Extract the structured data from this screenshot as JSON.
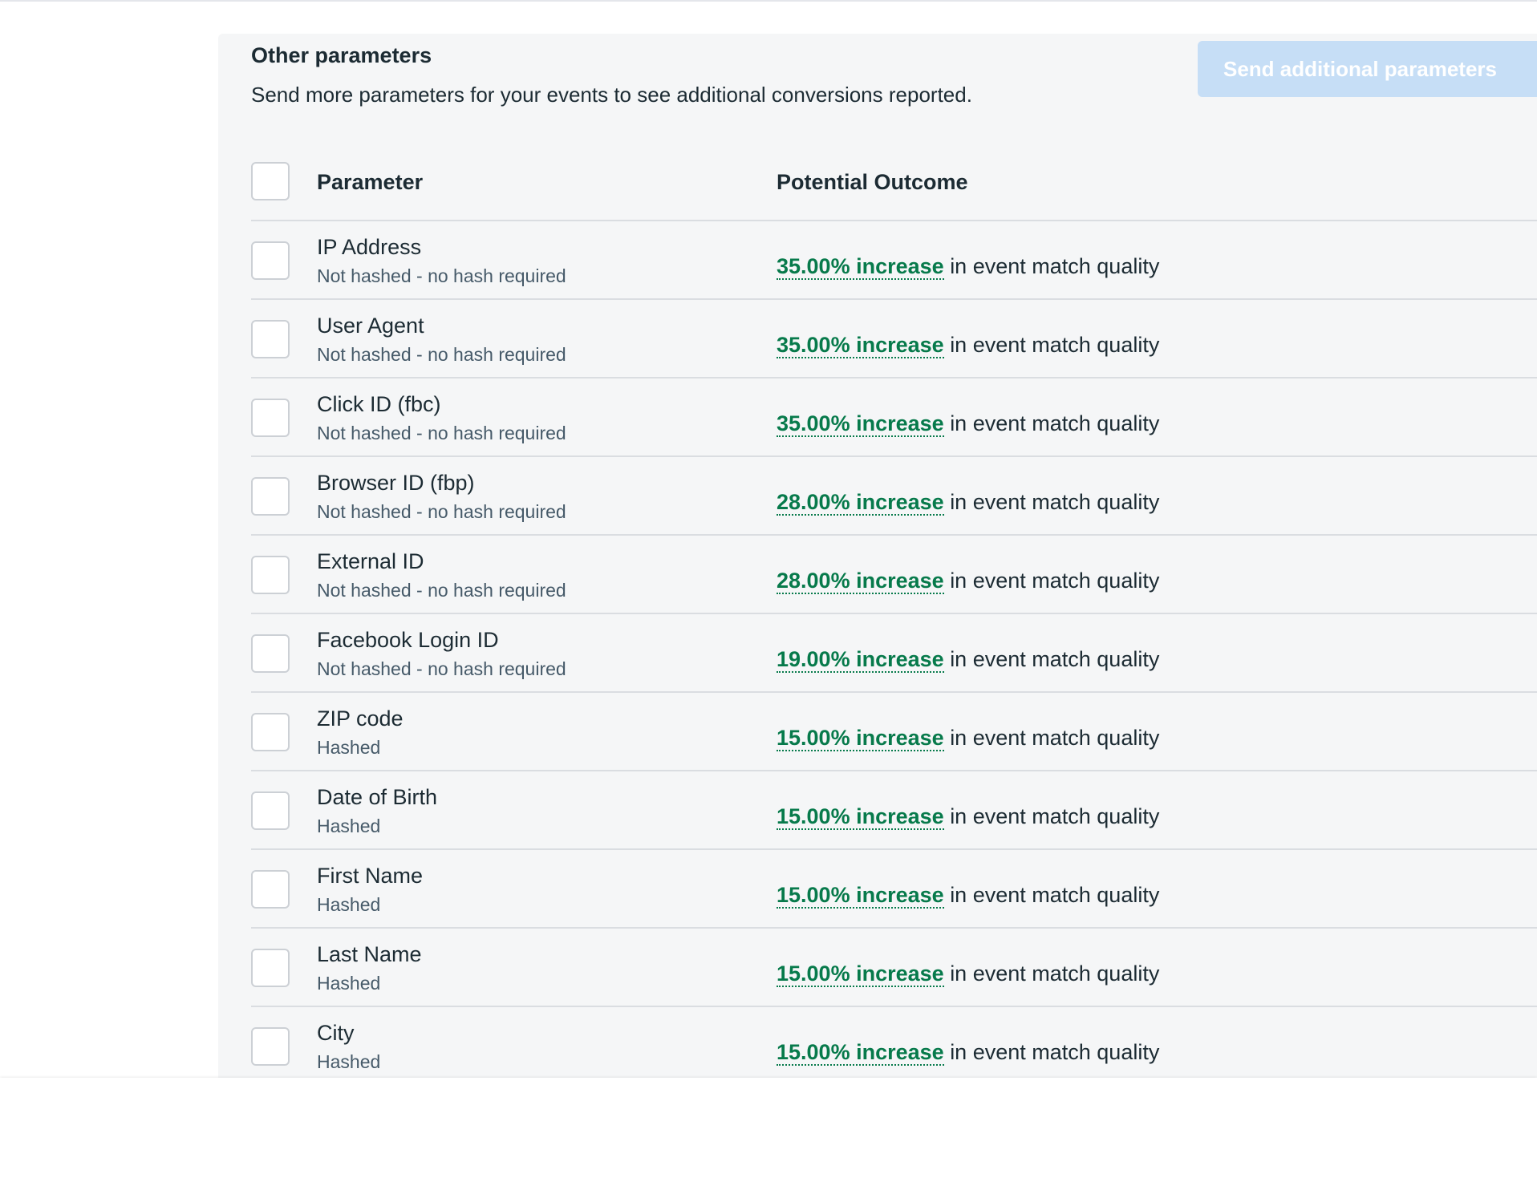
{
  "section": {
    "title": "Other parameters",
    "subtitle": "Send more parameters for your events to see additional conversions reported.",
    "button": "Send additional parameters"
  },
  "table": {
    "headers": [
      "Parameter",
      "Potential Outcome"
    ],
    "rows": [
      {
        "name": "IP Address",
        "hashing": "Not hashed - no hash required",
        "outcome": "35.00% increase",
        "outcome_suffix": "in event match quality"
      },
      {
        "name": "User Agent",
        "hashing": "Not hashed - no hash required",
        "outcome": "35.00% increase",
        "outcome_suffix": "in event match quality"
      },
      {
        "name": "Click ID (fbc)",
        "hashing": "Not hashed - no hash required",
        "outcome": "35.00% increase",
        "outcome_suffix": "in event match quality"
      },
      {
        "name": "Browser ID (fbp)",
        "hashing": "Not hashed - no hash required",
        "outcome": "28.00% increase",
        "outcome_suffix": "in event match quality"
      },
      {
        "name": "External ID",
        "hashing": "Not hashed - no hash required",
        "outcome": "28.00% increase",
        "outcome_suffix": "in event match quality"
      },
      {
        "name": "Facebook Login ID",
        "hashing": "Not hashed - no hash required",
        "outcome": "19.00% increase",
        "outcome_suffix": "in event match quality"
      },
      {
        "name": "ZIP code",
        "hashing": "Hashed",
        "outcome": "15.00% increase",
        "outcome_suffix": "in event match quality"
      },
      {
        "name": "Date of Birth",
        "hashing": "Hashed",
        "outcome": "15.00% increase",
        "outcome_suffix": "in event match quality"
      },
      {
        "name": "First Name",
        "hashing": "Hashed",
        "outcome": "15.00% increase",
        "outcome_suffix": "in event match quality"
      },
      {
        "name": "Last Name",
        "hashing": "Hashed",
        "outcome": "15.00% increase",
        "outcome_suffix": "in event match quality"
      },
      {
        "name": "City",
        "hashing": "Hashed",
        "outcome": "15.00% increase",
        "outcome_suffix": "in event match quality"
      }
    ]
  }
}
